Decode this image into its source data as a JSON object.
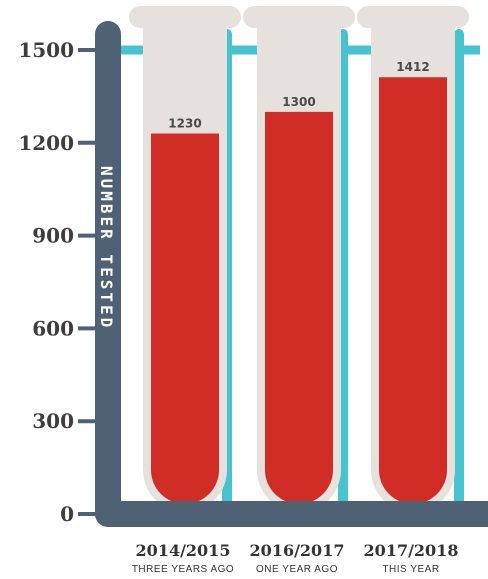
{
  "chart_data": {
    "type": "bar",
    "ylabel": "NUMBER TESTED",
    "ylim": [
      0,
      1500
    ],
    "yticks": [
      "0",
      "300",
      "600",
      "900",
      "1200",
      "1500"
    ],
    "categories": [
      "2014/2015",
      "2016/2017",
      "2017/2018"
    ],
    "subcategories": [
      "THREE YEARS AGO",
      "ONE YEAR AGO",
      "THIS YEAR"
    ],
    "values": [
      1230,
      1300,
      1412
    ],
    "value_labels": [
      "1230",
      "1300",
      "1412"
    ],
    "grid": true,
    "colors": {
      "bar": "#d12d27",
      "tube": "#e6e1dc",
      "axis": "#4e6175",
      "grid": "#47c3cf",
      "text": "#333333"
    }
  }
}
